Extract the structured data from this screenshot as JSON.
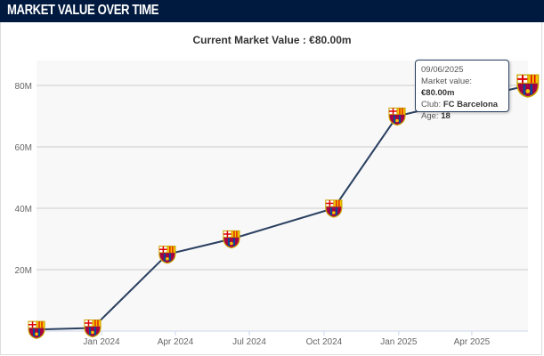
{
  "header": {
    "title": "MARKET VALUE OVER TIME"
  },
  "subtitle": "Current Market Value : €80.00m",
  "tooltip": {
    "date": "09/06/2025",
    "mv_label": "Market value:",
    "mv": "€80.00m",
    "club_label": "Club:",
    "club": "FC Barcelona",
    "age_label": "Age:",
    "age": "18"
  },
  "colors": {
    "header": "#001a3f",
    "line": "#2b4061",
    "plot_bg": "#f8f8f8",
    "grid": "#cccccc"
  },
  "chart_data": {
    "type": "line",
    "title": "Current Market Value : €80.00m",
    "xlabel": "",
    "ylabel": "",
    "ylim": [
      0,
      80
    ],
    "y_ticks": [
      {
        "v": 20,
        "label": "20M"
      },
      {
        "v": 40,
        "label": "40M"
      },
      {
        "v": 60,
        "label": "60M"
      },
      {
        "v": 80,
        "label": "80M"
      }
    ],
    "x_ticks": [
      {
        "d": "2024-01-01",
        "label": "Jan 2024"
      },
      {
        "d": "2024-04-01",
        "label": "Apr 2024"
      },
      {
        "d": "2024-07-01",
        "label": "Jul 2024"
      },
      {
        "d": "2024-10-01",
        "label": "Oct 2024"
      },
      {
        "d": "2025-01-01",
        "label": "Jan 2025"
      },
      {
        "d": "2025-04-01",
        "label": "Apr 2025"
      }
    ],
    "grid": true,
    "marker": "fc-barcelona-crest-icon",
    "points": [
      {
        "date": "2023-10-13",
        "value": 0.5
      },
      {
        "date": "2023-12-21",
        "value": 1
      },
      {
        "date": "2024-03-22",
        "value": 25
      },
      {
        "date": "2024-06-09",
        "value": 30
      },
      {
        "date": "2024-10-13",
        "value": 40
      },
      {
        "date": "2024-12-30",
        "value": 70
      },
      {
        "date": "2025-06-09",
        "value": 80
      }
    ]
  }
}
